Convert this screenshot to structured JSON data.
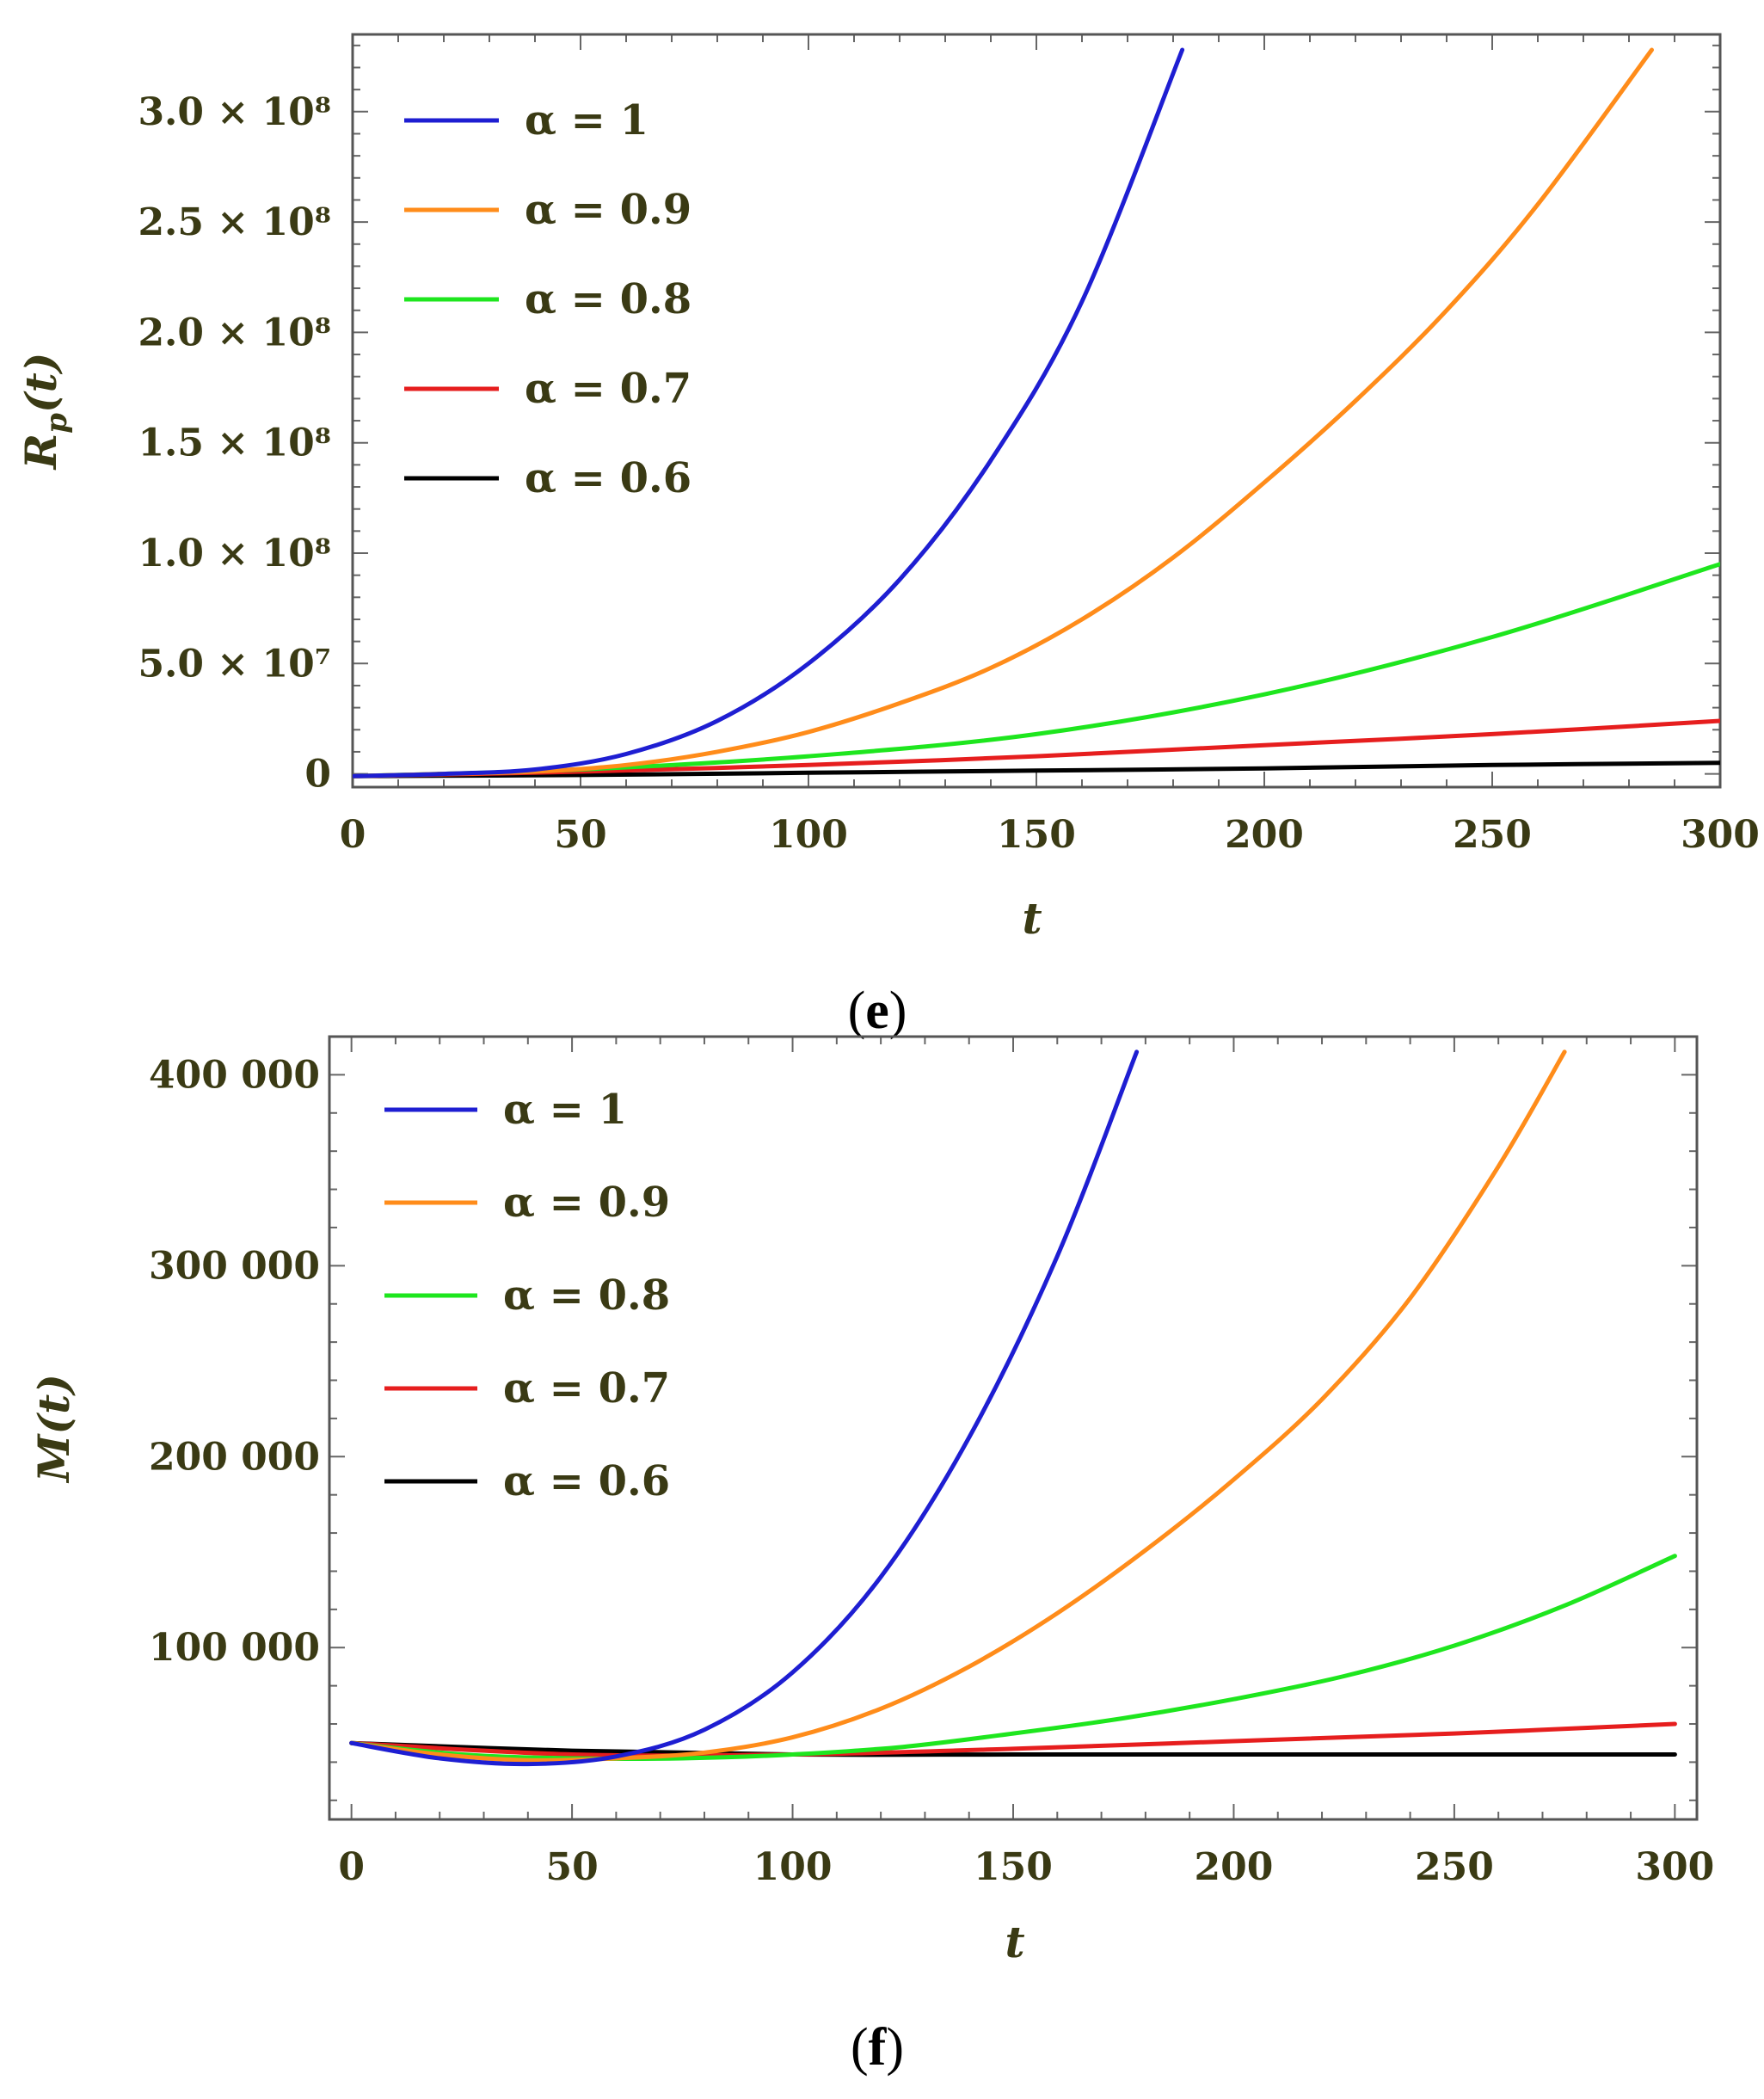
{
  "chart_data": [
    {
      "type": "line",
      "panel": "e",
      "caption_letter": "e",
      "xlabel": "t",
      "ylabel": "R",
      "ylabel_sub": "p",
      "ylabel_arg": "(t)",
      "xlim": [
        0,
        300
      ],
      "ylim": [
        -6000000,
        335000000
      ],
      "xticks": [
        {
          "value": 0,
          "label": "0"
        },
        {
          "value": 50,
          "label": "50"
        },
        {
          "value": 100,
          "label": "100"
        },
        {
          "value": 150,
          "label": "150"
        },
        {
          "value": 200,
          "label": "200"
        },
        {
          "value": 250,
          "label": "250"
        },
        {
          "value": 300,
          "label": "300"
        }
      ],
      "yticks": [
        {
          "value": 0,
          "label": "0"
        },
        {
          "value": 50000000,
          "label": "5.0 × 10⁷"
        },
        {
          "value": 100000000,
          "label": "1.0 × 10⁸"
        },
        {
          "value": 150000000,
          "label": "1.5 × 10⁸"
        },
        {
          "value": 200000000,
          "label": "2.0 × 10⁸"
        },
        {
          "value": 250000000,
          "label": "2.5 × 10⁸"
        },
        {
          "value": 300000000,
          "label": "3.0 × 10⁸"
        }
      ],
      "legend_position": "top-left",
      "series": [
        {
          "name": "α = 1",
          "color": "#1e1ed2",
          "x": [
            0,
            20,
            40,
            60,
            80,
            100,
            120,
            140,
            160,
            182
          ],
          "y": [
            -1000000,
            0,
            2000000,
            9000000,
            24000000,
            50000000,
            88000000,
            142000000,
            214000000,
            328000000
          ]
        },
        {
          "name": "α = 0.9",
          "color": "#ff8c1a",
          "x": [
            0,
            20,
            40,
            60,
            80,
            100,
            120,
            140,
            160,
            180,
            200,
            220,
            240,
            260,
            285
          ],
          "y": [
            -1000000,
            0,
            1000000,
            4000000,
            10000000,
            19000000,
            32000000,
            48000000,
            70000000,
            98000000,
            132000000,
            169000000,
            210000000,
            258000000,
            328000000
          ]
        },
        {
          "name": "α = 0.8",
          "color": "#1ee61e",
          "x": [
            0,
            50,
            100,
            150,
            200,
            250,
            300
          ],
          "y": [
            -1000000,
            2000000,
            8000000,
            18000000,
            36000000,
            62000000,
            95000000
          ]
        },
        {
          "name": "α = 0.7",
          "color": "#e61e1e",
          "x": [
            0,
            50,
            100,
            150,
            200,
            250,
            300
          ],
          "y": [
            -1000000,
            1000000,
            4000000,
            8000000,
            13000000,
            18000000,
            24000000
          ]
        },
        {
          "name": "α = 0.6",
          "color": "#000000",
          "x": [
            0,
            50,
            100,
            150,
            200,
            250,
            300
          ],
          "y": [
            -1000000,
            -500000,
            500000,
            1500000,
            2500000,
            4000000,
            5000000
          ]
        }
      ]
    },
    {
      "type": "line",
      "panel": "f",
      "caption_letter": "f",
      "xlabel": "t",
      "ylabel": "M(t)",
      "xlim": [
        -5,
        305
      ],
      "ylim": [
        10000,
        420000
      ],
      "xticks": [
        {
          "value": 0,
          "label": "0"
        },
        {
          "value": 50,
          "label": "50"
        },
        {
          "value": 100,
          "label": "100"
        },
        {
          "value": 150,
          "label": "150"
        },
        {
          "value": 200,
          "label": "200"
        },
        {
          "value": 250,
          "label": "250"
        },
        {
          "value": 300,
          "label": "300"
        }
      ],
      "yticks": [
        {
          "value": 100000,
          "label": "100 000"
        },
        {
          "value": 200000,
          "label": "200 000"
        },
        {
          "value": 300000,
          "label": "300 000"
        },
        {
          "value": 400000,
          "label": "400 000"
        }
      ],
      "legend_position": "top-left",
      "series": [
        {
          "name": "α = 1",
          "color": "#1e1ed2",
          "x": [
            0,
            20,
            40,
            60,
            80,
            100,
            120,
            140,
            160,
            178
          ],
          "y": [
            50000,
            42000,
            39000,
            43000,
            57000,
            87000,
            137000,
            210000,
            305000,
            412000
          ]
        },
        {
          "name": "α = 0.9",
          "color": "#ff8c1a",
          "x": [
            0,
            20,
            40,
            60,
            80,
            100,
            120,
            140,
            160,
            180,
            200,
            220,
            240,
            260,
            275
          ],
          "y": [
            50000,
            44000,
            41000,
            42000,
            45000,
            53000,
            68000,
            90000,
            118000,
            151000,
            188000,
            230000,
            283000,
            352000,
            412000
          ]
        },
        {
          "name": "α = 0.8",
          "color": "#1ee61e",
          "x": [
            0,
            25,
            50,
            75,
            100,
            125,
            150,
            175,
            200,
            225,
            250,
            275,
            300
          ],
          "y": [
            50000,
            44000,
            42000,
            42000,
            44000,
            48000,
            55000,
            63000,
            73000,
            85000,
            101000,
            122000,
            148000
          ]
        },
        {
          "name": "α = 0.7",
          "color": "#e61e1e",
          "x": [
            0,
            50,
            100,
            150,
            200,
            250,
            300
          ],
          "y": [
            50000,
            44000,
            44000,
            47000,
            51000,
            55000,
            60000
          ]
        },
        {
          "name": "α = 0.6",
          "color": "#000000",
          "x": [
            0,
            50,
            100,
            150,
            200,
            250,
            300
          ],
          "y": [
            50000,
            46000,
            44000,
            44000,
            44000,
            44000,
            44000
          ]
        }
      ]
    }
  ]
}
